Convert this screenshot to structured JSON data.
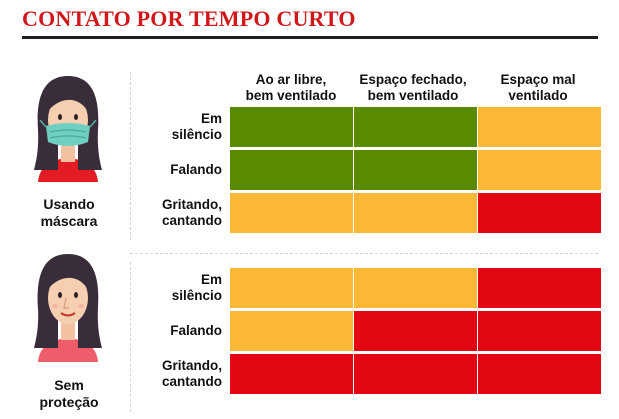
{
  "title": "CONTATO POR TEMPO CURTO",
  "columns": [
    "Ao ar libre,\nbem ventilado",
    "Espaço fechado,\nbem ventilado",
    "Espaço mal\nventilado"
  ],
  "colors": {
    "green": "#5a8a00",
    "yellow": "#fbb736",
    "red": "#e30613",
    "title_red": "#d0181b"
  },
  "groups": [
    {
      "label": "Usando\nmáscara",
      "avatar_icon": "woman-with-mask-icon",
      "rows": [
        {
          "label": "Em\nsilêncio",
          "risk": [
            "green",
            "green",
            "yellow"
          ]
        },
        {
          "label": "Falando",
          "risk": [
            "green",
            "green",
            "yellow"
          ]
        },
        {
          "label": "Gritando,\ncantando",
          "risk": [
            "yellow",
            "yellow",
            "red"
          ]
        }
      ]
    },
    {
      "label": "Sem\nproteção",
      "avatar_icon": "woman-without-mask-icon",
      "rows": [
        {
          "label": "Em\nsilêncio",
          "risk": [
            "yellow",
            "yellow",
            "red"
          ]
        },
        {
          "label": "Falando",
          "risk": [
            "yellow",
            "red",
            "red"
          ]
        },
        {
          "label": "Gritando,\ncantando",
          "risk": [
            "red",
            "red",
            "red"
          ]
        }
      ]
    }
  ]
}
